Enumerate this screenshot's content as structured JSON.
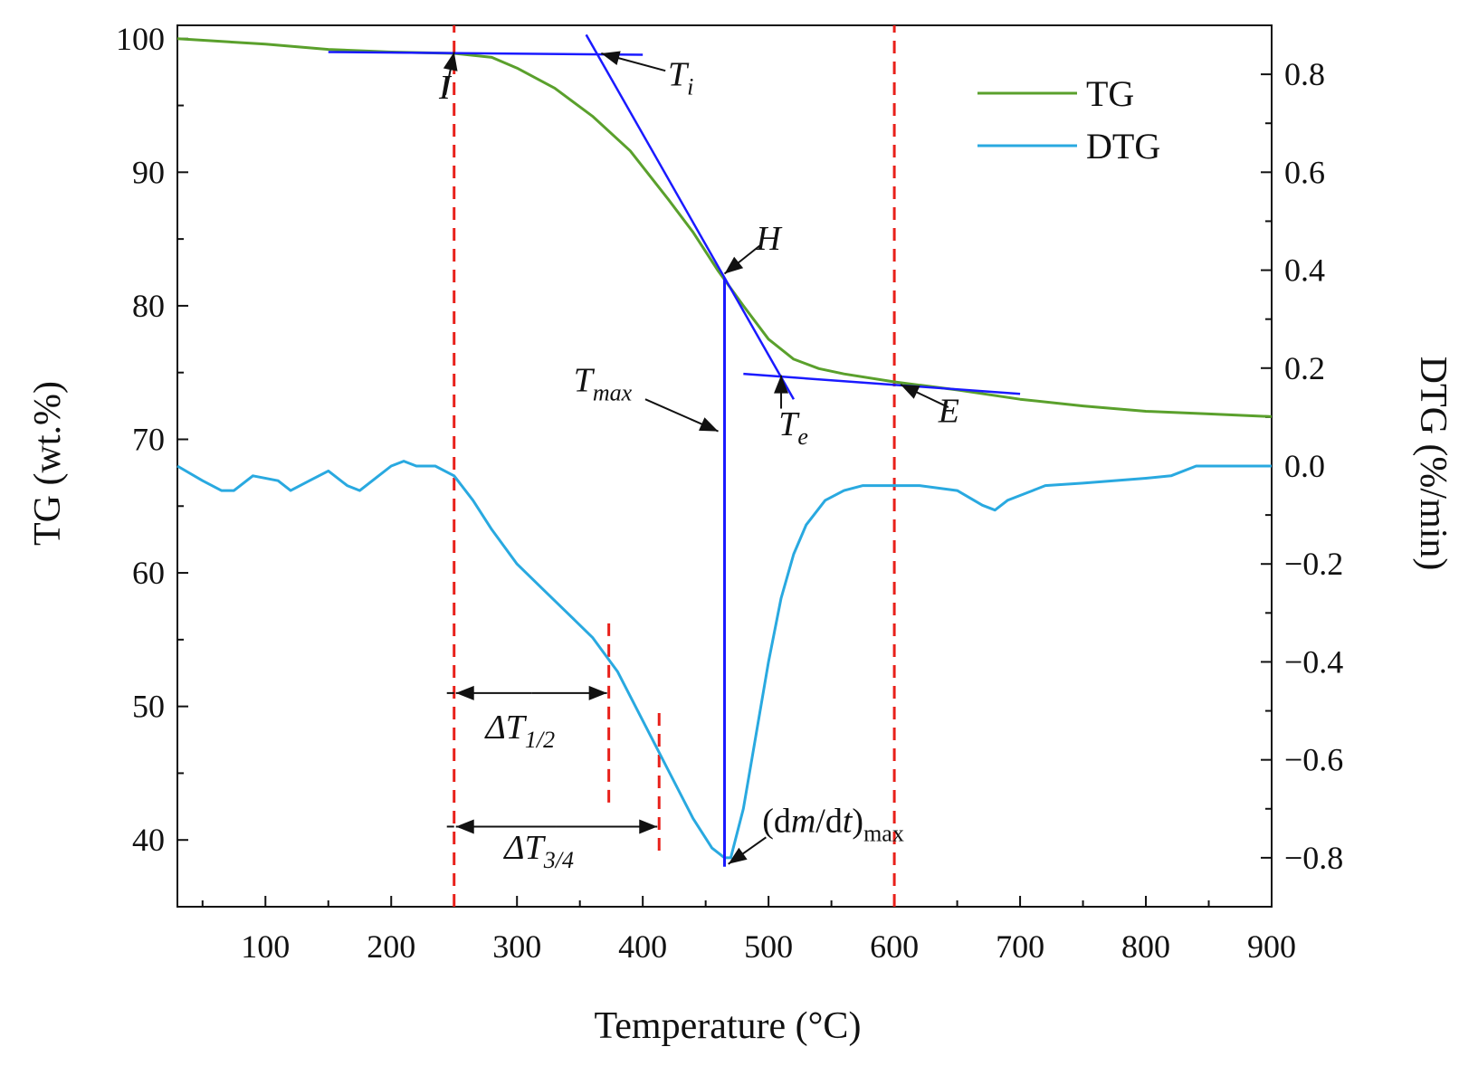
{
  "chart_data": {
    "type": "line",
    "xlabel": "Temperature (°C)",
    "ylabel": "TG (wt.%)",
    "y2label": "DTG (%/min)",
    "xlim": [
      30,
      900
    ],
    "ylim": [
      35,
      101
    ],
    "y2lim": [
      -0.9,
      0.9
    ],
    "xticks": [
      100,
      200,
      300,
      400,
      500,
      600,
      700,
      800,
      900
    ],
    "yticks": [
      40,
      50,
      60,
      70,
      80,
      90,
      100
    ],
    "y2ticks": [
      -0.8,
      -0.6,
      -0.4,
      -0.2,
      0.0,
      0.2,
      0.4,
      0.6,
      0.8
    ],
    "y2tick_labels": [
      "−0.8",
      "−0.6",
      "−0.4",
      "−0.2",
      "0.0",
      "0.2",
      "0.4",
      "0.6",
      "0.8"
    ],
    "grid": false,
    "legend_position": "top-right",
    "series": [
      {
        "name": "TG",
        "axis": "left",
        "color": "#5aa02c",
        "x": [
          30,
          100,
          150,
          200,
          250,
          280,
          300,
          330,
          360,
          390,
          420,
          440,
          460,
          480,
          500,
          520,
          540,
          560,
          600,
          650,
          700,
          750,
          800,
          850,
          900
        ],
        "y": [
          100.0,
          99.6,
          99.2,
          99.0,
          98.9,
          98.6,
          97.8,
          96.3,
          94.2,
          91.6,
          88.0,
          85.5,
          82.6,
          80.0,
          77.5,
          76.0,
          75.3,
          74.9,
          74.3,
          73.7,
          73.0,
          72.5,
          72.1,
          71.9,
          71.7
        ]
      },
      {
        "name": "DTG",
        "axis": "right",
        "color": "#29a9e0",
        "x": [
          30,
          50,
          65,
          75,
          90,
          110,
          120,
          135,
          150,
          165,
          175,
          190,
          200,
          210,
          220,
          235,
          250,
          265,
          280,
          300,
          320,
          340,
          360,
          380,
          400,
          420,
          440,
          455,
          465,
          470,
          480,
          490,
          500,
          510,
          520,
          530,
          545,
          560,
          575,
          600,
          620,
          650,
          670,
          680,
          690,
          700,
          710,
          720,
          750,
          800,
          820,
          840,
          880,
          900
        ],
        "y": [
          0.0,
          -0.03,
          -0.05,
          -0.05,
          -0.02,
          -0.03,
          -0.05,
          -0.03,
          -0.01,
          -0.04,
          -0.05,
          -0.02,
          0.0,
          0.01,
          0.0,
          0.0,
          -0.02,
          -0.07,
          -0.13,
          -0.2,
          -0.25,
          -0.3,
          -0.35,
          -0.42,
          -0.52,
          -0.62,
          -0.72,
          -0.78,
          -0.8,
          -0.8,
          -0.7,
          -0.55,
          -0.4,
          -0.27,
          -0.18,
          -0.12,
          -0.07,
          -0.05,
          -0.04,
          -0.04,
          -0.04,
          -0.05,
          -0.08,
          -0.09,
          -0.07,
          -0.06,
          -0.05,
          -0.04,
          -0.035,
          -0.025,
          -0.02,
          0.0,
          0.0,
          0.0
        ]
      }
    ],
    "tangent_lines": [
      {
        "name": "baseline-tangent",
        "color": "#1a1aff",
        "x1": 150,
        "y1": 99.0,
        "x2": 400,
        "y2": 98.8
      },
      {
        "name": "inflection-tangent",
        "color": "#1a1aff",
        "x1": 355,
        "y1": 100.3,
        "x2": 520,
        "y2": 73.0
      },
      {
        "name": "end-tangent",
        "color": "#1a1aff",
        "x1": 480,
        "y1": 74.9,
        "x2": 700,
        "y2": 73.4
      },
      {
        "name": "tmax-line",
        "color": "#1a1aff",
        "x1": 465,
        "y1": 82.1,
        "x2": 465,
        "y2": 38.0
      }
    ],
    "reference_lines": [
      {
        "name": "vline-onset",
        "x": 250,
        "y_from": 35,
        "y_to": 101
      },
      {
        "name": "vline-end",
        "x": 600,
        "y_from": 35,
        "y_to": 101
      },
      {
        "name": "vline-half",
        "x": 373,
        "y_from": 42.8,
        "y_to": 56.5
      },
      {
        "name": "vline-three-quarter",
        "x": 413,
        "y_from": 39.2,
        "y_to": 49.9
      }
    ],
    "annotations": {
      "I": {
        "label": "I",
        "x": 238,
        "y": 95.5
      },
      "Ti": {
        "label": "T",
        "sub": "i",
        "x": 420,
        "y": 96.5
      },
      "H": {
        "label": "H",
        "x": 490,
        "y": 84.2
      },
      "Tmax": {
        "label": "T",
        "sub": "max",
        "x": 345,
        "y": 73.6
      },
      "Te": {
        "label": "T",
        "sub": "e",
        "x": 508,
        "y": 70.3
      },
      "E": {
        "label": "E",
        "x": 635,
        "y": 71.3
      },
      "dT12": {
        "label": "ΔT",
        "sub": "1/2",
        "x": 275,
        "y": 47.6
      },
      "dT34": {
        "label": "ΔT",
        "sub": "3/4",
        "x": 290,
        "y": 38.6
      },
      "dmdt": {
        "prefix": "(d",
        "m": "m",
        "slash": "/d",
        "t": "t",
        "suffix": ")",
        "sub": "max",
        "x": 495,
        "y": 40.6
      }
    }
  }
}
